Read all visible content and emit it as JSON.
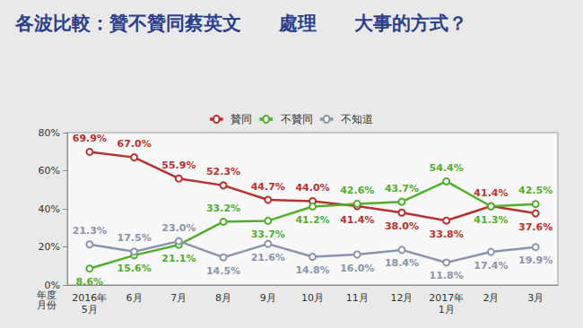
{
  "chart_data": {
    "type": "line",
    "title": "各波比較：贊不贊同蔡英文　　處理　　大事的方式？",
    "x_label": "年度\n月份",
    "categories": [
      "2016年\n5月",
      "6月",
      "7月",
      "8月",
      "9月",
      "10月",
      "11月",
      "12月",
      "2017年\n1月",
      "2月",
      "3月"
    ],
    "series": [
      {
        "name": "贊同",
        "color": "#b8312f",
        "marker": "circle",
        "values": [
          69.9,
          67.0,
          55.9,
          52.3,
          44.7,
          44.0,
          41.4,
          38.0,
          33.8,
          41.4,
          37.6
        ],
        "value_labels": [
          "69.9%",
          "67.0%",
          "55.9%",
          "52.3%",
          "44.7%",
          "44.0%",
          "41.4%",
          "38.0%",
          "33.8%",
          "41.4%",
          "37.6%"
        ]
      },
      {
        "name": "不贊同",
        "color": "#4fae2c",
        "marker": "circle",
        "values": [
          8.6,
          15.6,
          21.1,
          33.2,
          33.7,
          41.2,
          42.6,
          43.7,
          54.4,
          41.3,
          42.5
        ],
        "value_labels": [
          "8.6%",
          "15.6%",
          "21.1%",
          "33.2%",
          "33.7%",
          "41.2%",
          "42.6%",
          "43.7%",
          "54.4%",
          "41.3%",
          "42.5%"
        ]
      },
      {
        "name": "不知道",
        "color": "#8a94aa",
        "marker": "circle",
        "values": [
          21.3,
          17.5,
          23.0,
          14.5,
          21.6,
          14.8,
          16.0,
          18.4,
          11.8,
          17.4,
          19.9
        ],
        "value_labels": [
          "21.3%",
          "17.5%",
          "23.0%",
          "14.5%",
          "21.6%",
          "14.8%",
          "16.0%",
          "18.4%",
          "11.8%",
          "17.4%",
          "19.9%"
        ]
      }
    ],
    "ylim": [
      0,
      80
    ],
    "yticks": [
      {
        "value": 0,
        "label": "0%"
      },
      {
        "value": 20,
        "label": "20%"
      },
      {
        "value": 40,
        "label": "40%"
      },
      {
        "value": 60,
        "label": "60%"
      },
      {
        "value": 80,
        "label": "80%"
      }
    ],
    "grid": false,
    "legend": "top",
    "data_labels": true
  }
}
